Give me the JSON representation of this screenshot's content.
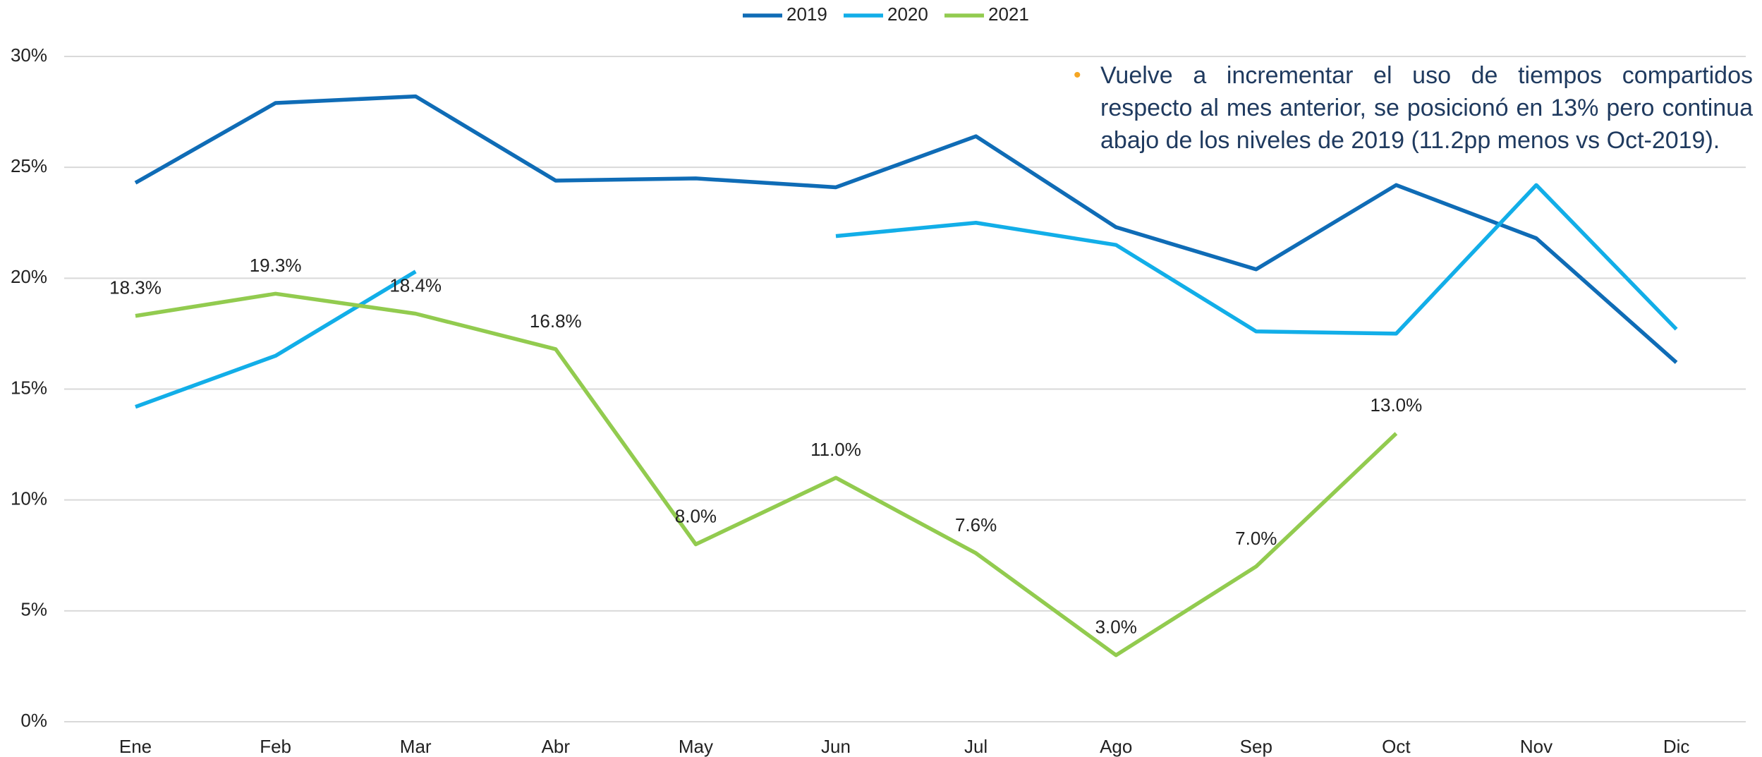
{
  "chart_data": {
    "type": "line",
    "categories": [
      "Ene",
      "Feb",
      "Mar",
      "Abr",
      "May",
      "Jun",
      "Jul",
      "Ago",
      "Sep",
      "Oct",
      "Nov",
      "Dic"
    ],
    "series": [
      {
        "name": "2019",
        "color": "#0f6cb6",
        "values": [
          24.3,
          27.9,
          28.2,
          24.4,
          24.5,
          24.1,
          26.4,
          22.3,
          20.4,
          24.2,
          21.8,
          16.2
        ]
      },
      {
        "name": "2020",
        "color": "#12aee8",
        "values": [
          14.2,
          16.5,
          20.3,
          null,
          null,
          21.9,
          22.5,
          21.5,
          17.6,
          17.5,
          24.2,
          17.7
        ]
      },
      {
        "name": "2021",
        "color": "#92cb4f",
        "values": [
          18.3,
          19.3,
          18.4,
          16.8,
          8.0,
          11.0,
          7.6,
          3.0,
          7.0,
          13.0,
          null,
          null
        ],
        "value_labels": [
          "18.3%",
          "19.3%",
          "18.4%",
          "16.8%",
          "8.0%",
          "11.0%",
          "7.6%",
          "3.0%",
          "7.0%",
          "13.0%",
          null,
          null
        ]
      }
    ],
    "ylim": [
      0,
      30
    ],
    "yticks": [
      {
        "value": 0,
        "label": "0%"
      },
      {
        "value": 5,
        "label": "5%"
      },
      {
        "value": 10,
        "label": "10%"
      },
      {
        "value": 15,
        "label": "15%"
      },
      {
        "value": 20,
        "label": "20%"
      },
      {
        "value": 25,
        "label": "25%"
      },
      {
        "value": 30,
        "label": "30%"
      }
    ],
    "grid": true,
    "legend": "top",
    "annotation": "Vuelve a incrementar el uso de tiempos compartidos respecto al mes anterior, se posicionó en 13% pero continua abajo de los niveles de 2019 (11.2pp menos vs Oct-2019)."
  }
}
